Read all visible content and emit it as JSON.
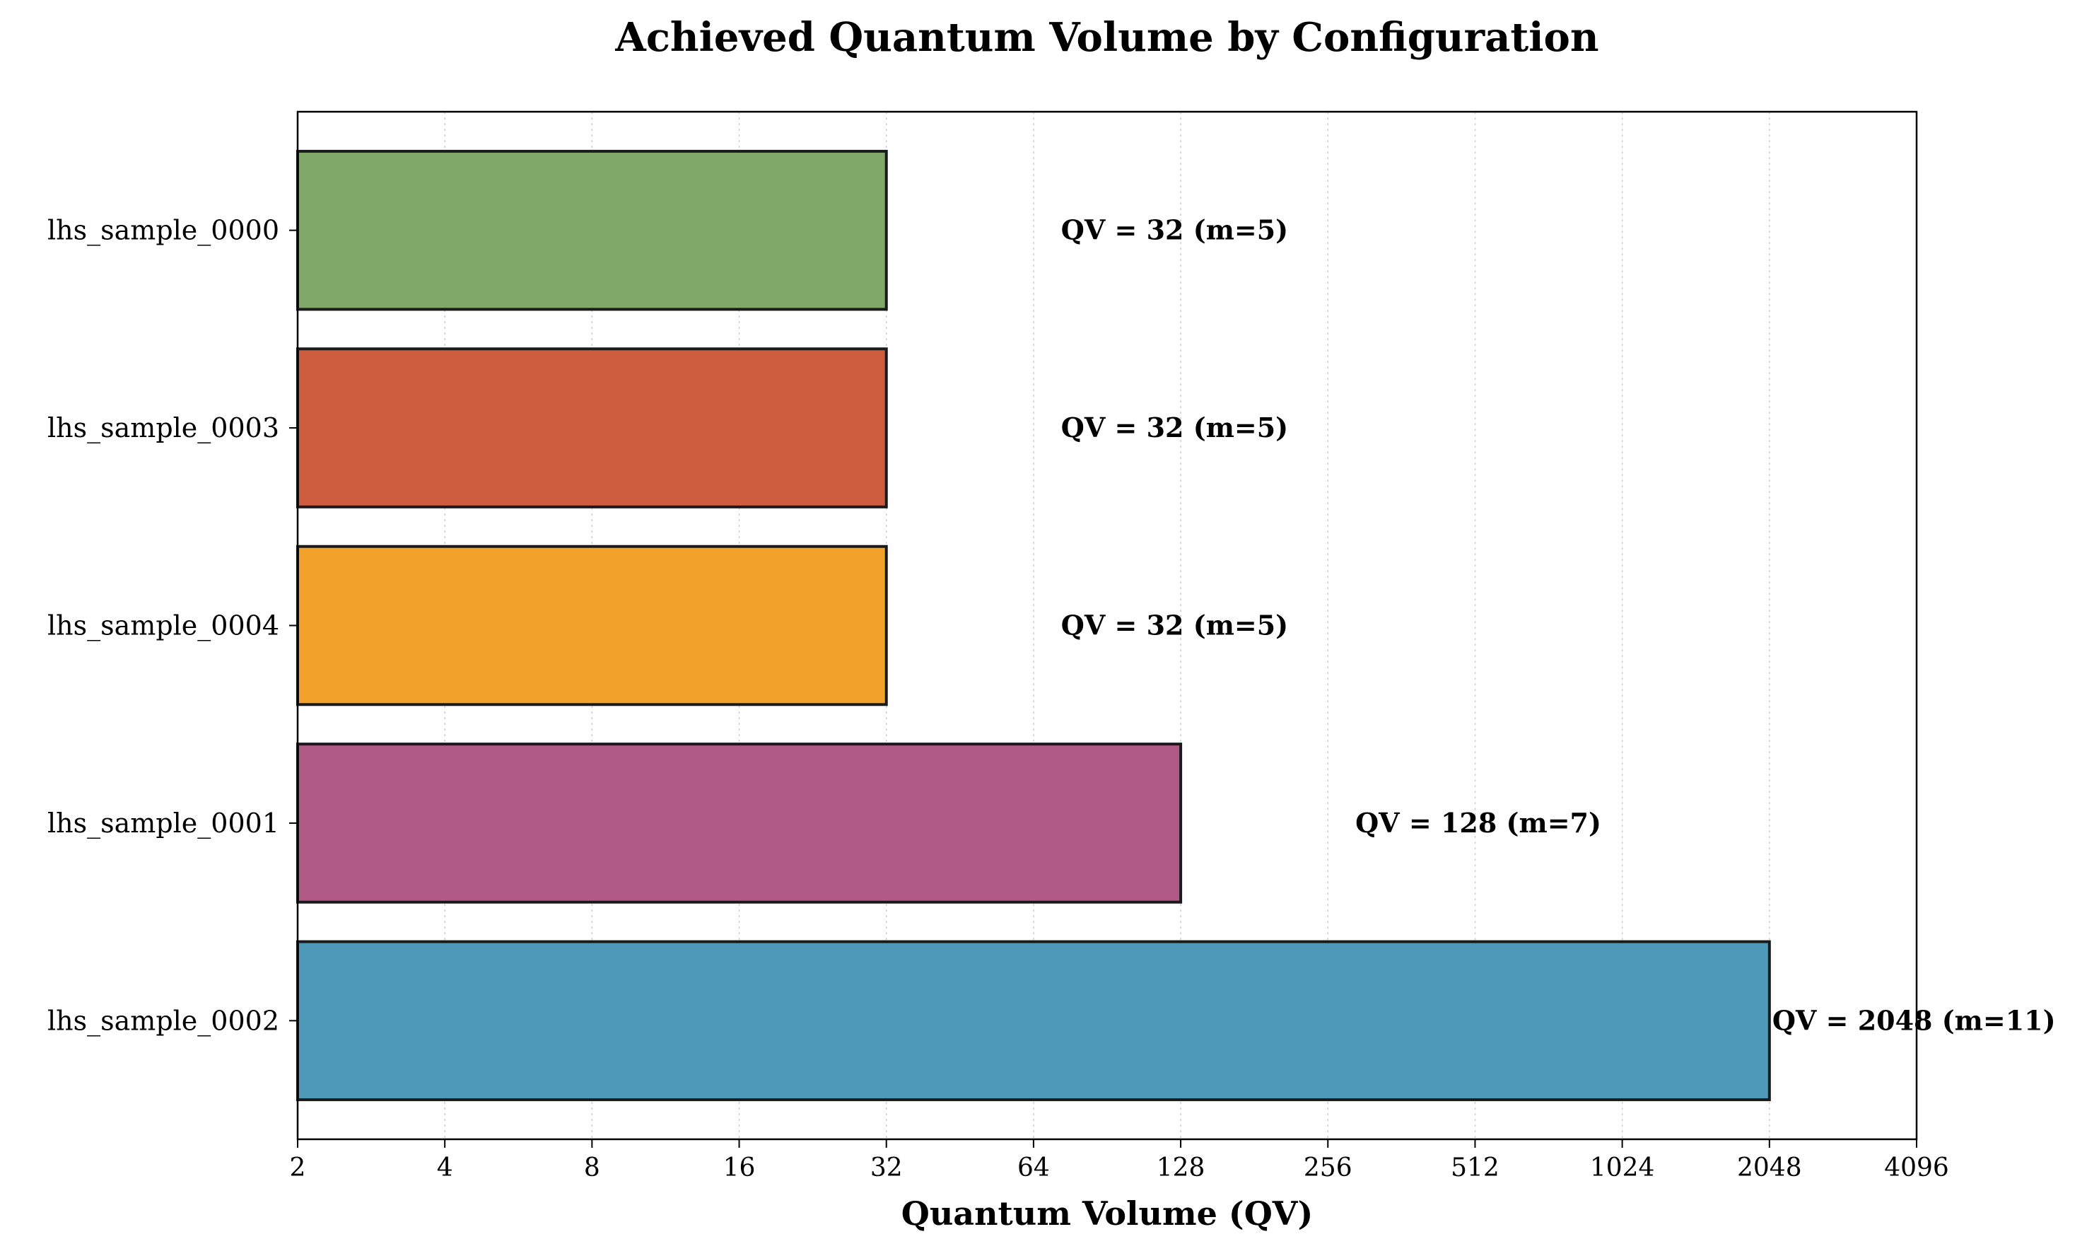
{
  "chart_data": {
    "type": "bar",
    "orientation": "horizontal",
    "title": "Achieved Quantum Volume by Configuration",
    "xlabel": "Quantum Volume (QV)",
    "ylabel": "",
    "xscale": "log2",
    "xlim": [
      2,
      4096
    ],
    "xticks": [
      2,
      4,
      8,
      16,
      32,
      64,
      128,
      256,
      512,
      1024,
      2048,
      4096
    ],
    "grid": "vertical dotted",
    "categories": [
      "lhs_sample_0000",
      "lhs_sample_0003",
      "lhs_sample_0004",
      "lhs_sample_0001",
      "lhs_sample_0002"
    ],
    "values": [
      32,
      32,
      32,
      128,
      2048
    ],
    "m_values": [
      5,
      5,
      5,
      7,
      11
    ],
    "bar_labels": [
      "QV = 32 (m=5)",
      "QV = 32 (m=5)",
      "QV = 32 (m=5)",
      "QV = 128 (m=7)",
      "QV = 2048 (m=11)"
    ],
    "colors": [
      "#80a869",
      "#cd5c3f",
      "#f2a12a",
      "#b05a86",
      "#4e99b8"
    ]
  }
}
